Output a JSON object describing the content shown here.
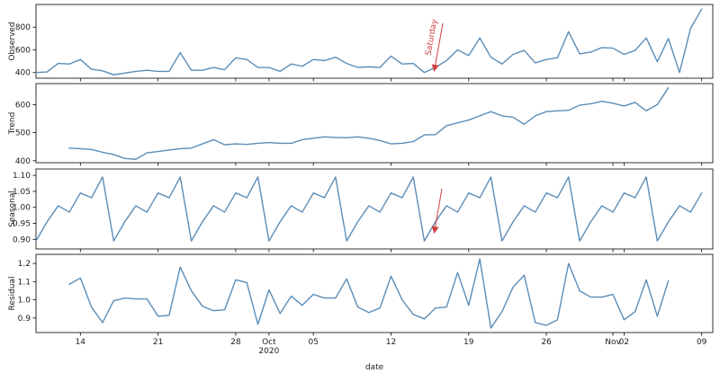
{
  "chart_data": {
    "type": "line",
    "line_color": "#5b8db8",
    "annotation_color": "#d0403f",
    "x": {
      "label": "date",
      "tick_labels": [
        "14",
        "21",
        "28",
        "Oct\n2020",
        "05",
        "12",
        "19",
        "26",
        "Nov",
        "02",
        "09"
      ],
      "tick_dates": [
        "2020-09-14",
        "2020-09-21",
        "2020-09-28",
        "2020-10-01",
        "2020-10-05",
        "2020-10-12",
        "2020-10-19",
        "2020-10-26",
        "2020-11-01",
        "2020-11-02",
        "2020-11-09"
      ],
      "range": [
        "2020-09-10",
        "2020-11-10"
      ]
    },
    "panels": [
      {
        "ylabel": "Observed",
        "ylim": [
          350,
          1000
        ],
        "yticks": [
          "400",
          "600",
          "800"
        ],
        "ytick_values": [
          400,
          600,
          800
        ],
        "start_date": "2020-09-10",
        "values": [
          400,
          405,
          480,
          475,
          515,
          430,
          415,
          380,
          395,
          410,
          420,
          410,
          410,
          575,
          420,
          420,
          445,
          425,
          530,
          515,
          445,
          445,
          410,
          475,
          455,
          515,
          505,
          535,
          480,
          445,
          450,
          445,
          545,
          475,
          480,
          400,
          445,
          505,
          600,
          550,
          705,
          535,
          475,
          560,
          595,
          485,
          515,
          530,
          760,
          565,
          580,
          620,
          615,
          560,
          595,
          705,
          495,
          700,
          400,
          790,
          960
        ]
      },
      {
        "ylabel": "Trend",
        "ylim": [
          393,
          675
        ],
        "yticks": [
          "400",
          "500",
          "600"
        ],
        "ytick_values": [
          400,
          500,
          600
        ],
        "start_date": "2020-09-13",
        "values": [
          445,
          443,
          440,
          430,
          422,
          408,
          405,
          428,
          433,
          438,
          443,
          445,
          460,
          475,
          457,
          460,
          458,
          462,
          465,
          462,
          462,
          475,
          480,
          485,
          483,
          482,
          485,
          480,
          472,
          460,
          462,
          468,
          492,
          493,
          525,
          535,
          545,
          560,
          575,
          560,
          555,
          530,
          560,
          575,
          578,
          580,
          598,
          603,
          612,
          605,
          595,
          608,
          578,
          600,
          660
        ]
      },
      {
        "ylabel": "Seasonal",
        "ylim": [
          0.87,
          1.12
        ],
        "yticks": [
          "0.90",
          "0.95",
          "1.00",
          "1.05",
          "1.10"
        ],
        "ytick_values": [
          0.9,
          0.95,
          1.0,
          1.05,
          1.1
        ],
        "start_date": "2020-09-10",
        "pattern": [
          0.895,
          0.955,
          1.005,
          0.985,
          1.045,
          1.03,
          1.095
        ],
        "count": 61
      },
      {
        "ylabel": "Residual",
        "ylim": [
          0.82,
          1.25
        ],
        "yticks": [
          "0.9",
          "1.0",
          "1.1",
          "1.2"
        ],
        "ytick_values": [
          0.9,
          1.0,
          1.1,
          1.2
        ],
        "start_date": "2020-09-13",
        "values": [
          1.085,
          1.12,
          0.96,
          0.875,
          0.995,
          1.01,
          1.005,
          1.005,
          0.91,
          0.915,
          1.18,
          1.05,
          0.965,
          0.94,
          0.945,
          1.11,
          1.095,
          0.865,
          1.055,
          0.925,
          1.02,
          0.97,
          1.03,
          1.01,
          1.01,
          1.115,
          0.96,
          0.93,
          0.955,
          1.13,
          1.0,
          0.92,
          0.895,
          0.955,
          0.96,
          1.15,
          0.97,
          1.225,
          0.845,
          0.935,
          1.07,
          1.135,
          0.875,
          0.86,
          0.89,
          1.2,
          1.05,
          1.015,
          1.015,
          1.03,
          0.89,
          0.935,
          1.11,
          0.91,
          1.105
        ]
      }
    ],
    "annotations": [
      {
        "panel": 0,
        "text": "Saturday"
      },
      {
        "panel": 2,
        "text": ""
      }
    ]
  }
}
